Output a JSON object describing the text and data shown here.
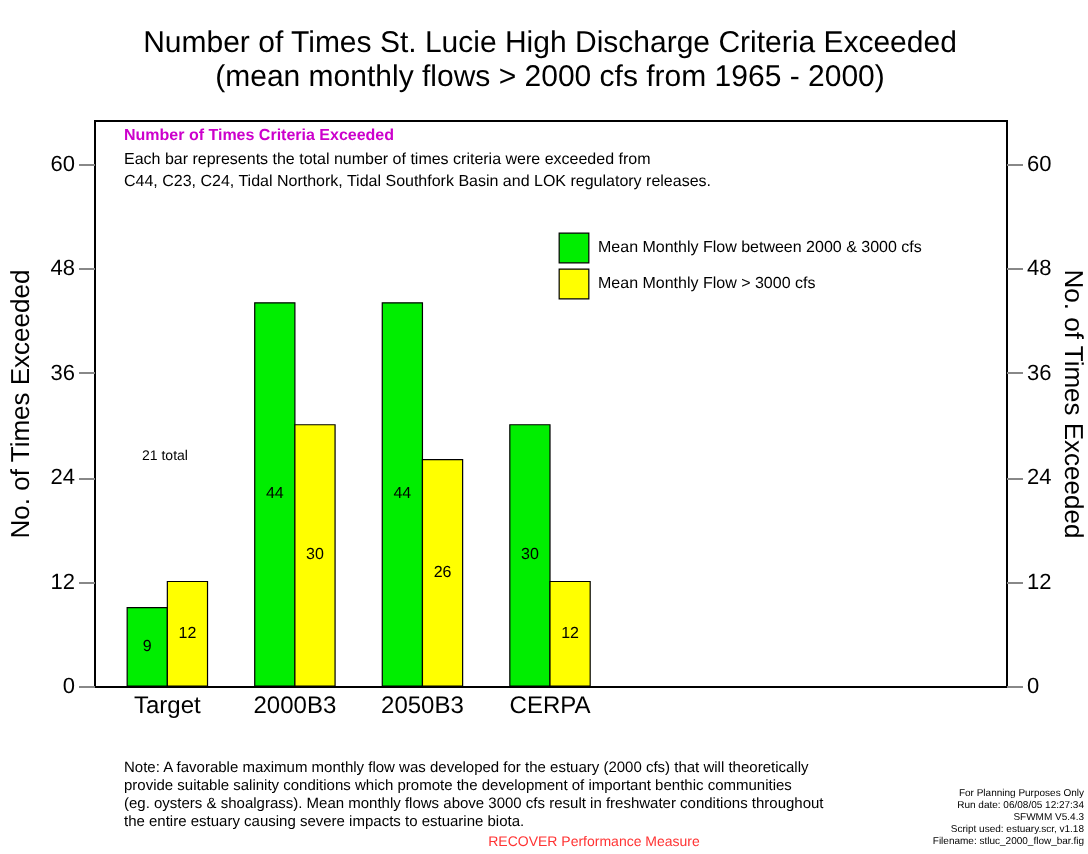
{
  "chart_data": {
    "type": "bar",
    "title": "Number of Times St. Lucie High Discharge Criteria Exceeded",
    "subtitle": "(mean monthly flows > 2000 cfs from 1965 - 2000)",
    "ylabel": "No. of Times Exceeded",
    "y2label": "No. of Times Exceeded",
    "categories": [
      "Target",
      "2000B3",
      "2050B3",
      "CERPA",
      null,
      null,
      null
    ],
    "series": [
      {
        "name": "Mean Monthly Flow between 2000 & 3000 cfs",
        "color": "#00ee00",
        "values": [
          9,
          44,
          44,
          30,
          null,
          null,
          null
        ]
      },
      {
        "name": "Mean Monthly Flow > 3000 cfs",
        "color": "#ffff00",
        "values": [
          12,
          30,
          26,
          12,
          null,
          null,
          null
        ]
      }
    ],
    "ylim": [
      0,
      65
    ],
    "yticks": [
      0,
      12,
      24,
      36,
      48,
      60
    ],
    "y2lim": [
      0,
      65
    ],
    "y2ticks": [
      0,
      12,
      24,
      36,
      48,
      60
    ],
    "data_labels": true,
    "legend": "top right",
    "grid": false,
    "annotations": [
      "Number of Times Criteria Exceeded",
      "Each bar represents the total number of times criteria were exceeded from",
      "C44, C23, C24, Tidal Northork, Tidal Southfork Basin and LOK regulatory releases.",
      "21 total",
      "Note: A favorable maximum monthly flow was developed for the estuary (2000 cfs) that will theoretically",
      "provide suitable salinity conditions which promote the development of important benthic communities",
      "(eg. oysters & shoalgrass). Mean monthly flows above 3000 cfs result in freshwater conditions throughout",
      "the entire estuary causing severe impacts to estuarine biota.",
      "For Planning Purposes Only",
      "Run date: 06/08/05 12:27:34",
      "SFWMM V5.4.3",
      "Script used: estuary.scr, v1.18",
      "Filename: stluc_2000_flow_bar.fig",
      "RECOVER Performance Measure"
    ]
  }
}
